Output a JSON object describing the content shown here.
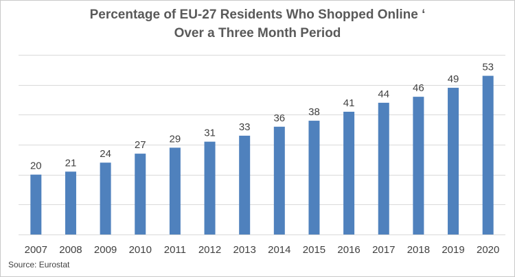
{
  "chart_data": {
    "type": "bar",
    "title_lines": [
      "Percentage of EU-27 Residents Who Shopped Online ‘",
      "Over a Three Month Period"
    ],
    "categories": [
      "2007",
      "2008",
      "2009",
      "2010",
      "2011",
      "2012",
      "2013",
      "2014",
      "2015",
      "2016",
      "2017",
      "2018",
      "2019",
      "2020"
    ],
    "values": [
      20,
      21,
      24,
      27,
      29,
      31,
      33,
      36,
      38,
      41,
      44,
      46,
      49,
      53
    ],
    "xlabel": "",
    "ylabel": "",
    "ylim": [
      0,
      60
    ],
    "ytick_step": 10,
    "y_tick_labels_shown": false,
    "grid": true,
    "data_labels": true,
    "legend": "none",
    "bar_color": "#4f81bd",
    "grid_color": "#d9d9d9"
  },
  "source": "Source: Eurostat"
}
